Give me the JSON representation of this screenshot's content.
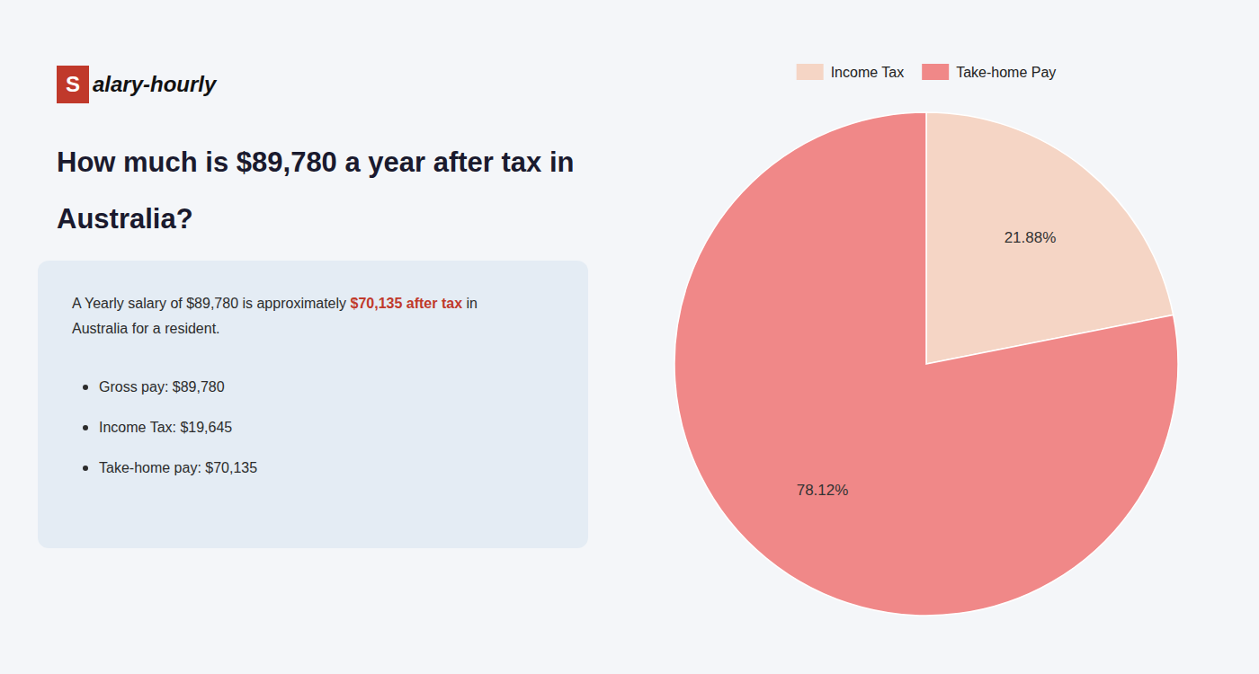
{
  "chart_data": {
    "type": "pie",
    "title": [
      "How much is $89,780 a year after tax in",
      "Australia?"
    ],
    "annotations": [
      "S",
      "alary-hourly",
      "A Yearly salary of $89,780 is approximately ",
      "$70,135 after tax",
      " in",
      "Australia for a resident.",
      "Gross pay: $89,780",
      "Income Tax: $19,645",
      "Take-home pay: $70,135"
    ],
    "categories": [
      "Income Tax",
      "Take-home Pay"
    ],
    "values": [
      21.88,
      78.12
    ],
    "value_labels": [
      "21.88%",
      "78.12%"
    ],
    "colors": [
      "#f5d5c5",
      "#f08888"
    ],
    "data_labels": true,
    "legend": "top"
  }
}
